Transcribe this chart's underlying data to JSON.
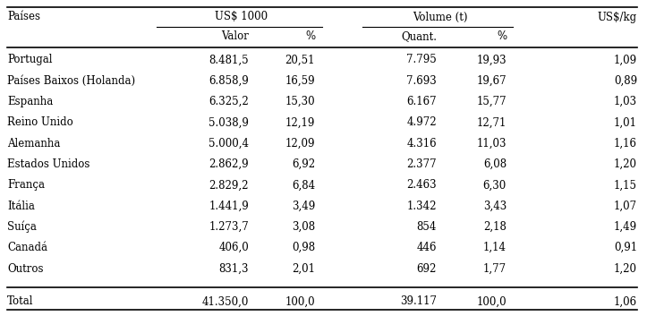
{
  "rows": [
    [
      "Portugal",
      "8.481,5",
      "20,51",
      "7.795",
      "19,93",
      "1,09"
    ],
    [
      "Países Baixos (Holanda)",
      "6.858,9",
      "16,59",
      "7.693",
      "19,67",
      "0,89"
    ],
    [
      "Espanha",
      "6.325,2",
      "15,30",
      "6.167",
      "15,77",
      "1,03"
    ],
    [
      "Reino Unido",
      "5.038,9",
      "12,19",
      "4.972",
      "12,71",
      "1,01"
    ],
    [
      "Alemanha",
      "5.000,4",
      "12,09",
      "4.316",
      "11,03",
      "1,16"
    ],
    [
      "Estados Unidos",
      "2.862,9",
      "6,92",
      "2.377",
      "6,08",
      "1,20"
    ],
    [
      "França",
      "2.829,2",
      "6,84",
      "2.463",
      "6,30",
      "1,15"
    ],
    [
      "Itália",
      "1.441,9",
      "3,49",
      "1.342",
      "3,43",
      "1,07"
    ],
    [
      "Suíça",
      "1.273,7",
      "3,08",
      "854",
      "2,18",
      "1,49"
    ],
    [
      "Canadá",
      "406,0",
      "0,98",
      "446",
      "1,14",
      "0,91"
    ],
    [
      "Outros",
      "831,3",
      "2,01",
      "692",
      "1,77",
      "1,20"
    ]
  ],
  "total_row": [
    "Total",
    "41.350,0",
    "100,0",
    "39.117",
    "100,0",
    "1,06"
  ],
  "col_alignments": [
    "left",
    "right",
    "right",
    "right",
    "right",
    "right"
  ],
  "bg_color": "#ffffff",
  "text_color": "#000000",
  "font_size": 8.5,
  "header_font_size": 8.5,
  "paises_label": "Países",
  "us1000_label": "US$ 1000",
  "volume_label": "Volume (t)",
  "uskg_label": "US$/kg",
  "valor_label": "Valor",
  "pct_label": "%",
  "quant_label": "Quant.",
  "pct2_label": "%"
}
